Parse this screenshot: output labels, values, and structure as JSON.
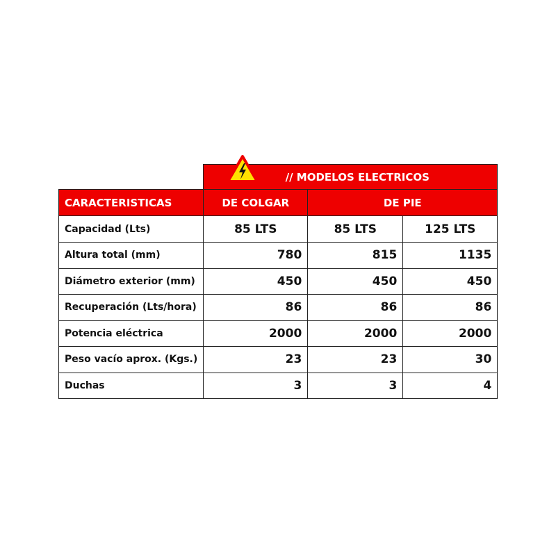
{
  "title": "// MODELOS ELECTRICOS",
  "header": {
    "characteristics": "CARACTERISTICAS",
    "group1": "DE COLGAR",
    "group2": "DE PIE"
  },
  "colors": {
    "header_bg": "#ee0000",
    "icon": "#ffe000"
  },
  "icon": "high-voltage-warning-icon",
  "rows": [
    {
      "label": "Capacidad (Lts)",
      "values": [
        "85 LTS",
        "85 LTS",
        "125 LTS"
      ]
    },
    {
      "label": "Altura total (mm)",
      "values": [
        "780",
        "815",
        "1135"
      ]
    },
    {
      "label": "Diámetro exterior (mm)",
      "values": [
        "450",
        "450",
        "450"
      ]
    },
    {
      "label": "Recuperación (Lts/hora)",
      "values": [
        "86",
        "86",
        "86"
      ]
    },
    {
      "label": "Potencia eléctrica",
      "values": [
        "2000",
        "2000",
        "2000"
      ]
    },
    {
      "label": "Peso vacío aprox. (Kgs.)",
      "values": [
        "23",
        "23",
        "30"
      ]
    },
    {
      "label": "Duchas",
      "values": [
        "3",
        "3",
        "4"
      ]
    }
  ]
}
